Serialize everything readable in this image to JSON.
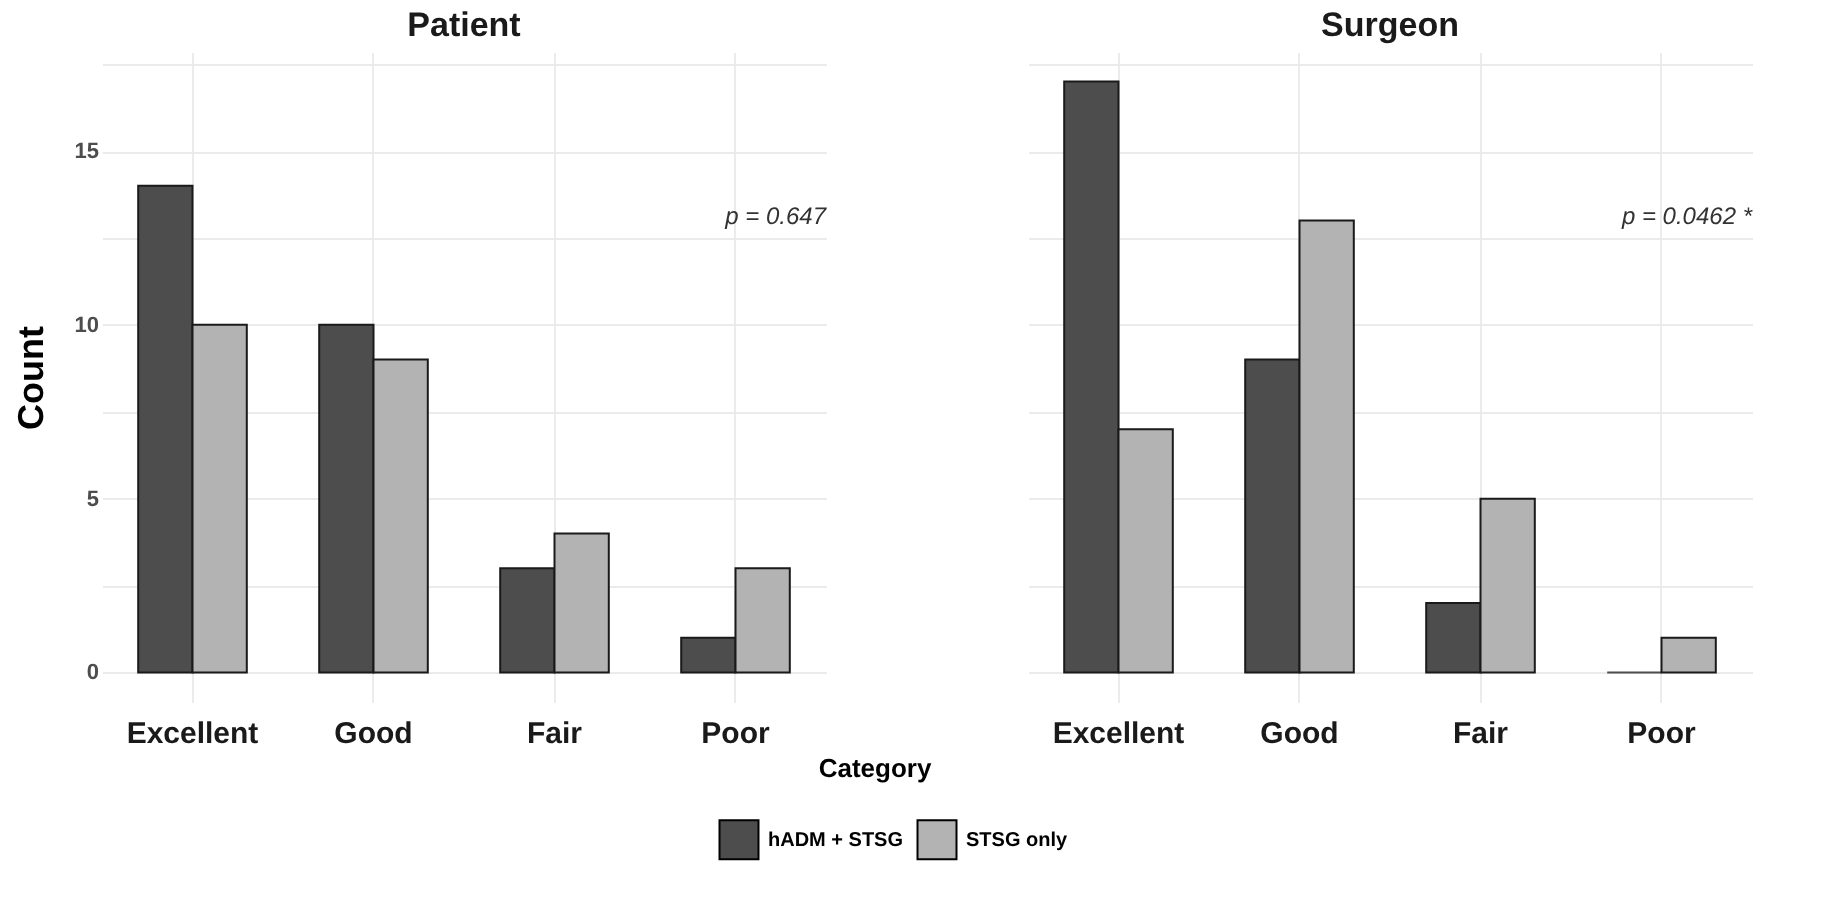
{
  "chart_data": [
    {
      "type": "bar",
      "title": "Patient",
      "xlabel": "Category",
      "ylabel": "Count",
      "categories": [
        "Excellent",
        "Good",
        "Fair",
        "Poor"
      ],
      "series": [
        {
          "name": "hADM + STSG",
          "color": "#4d4d4d",
          "values": [
            14,
            10,
            3,
            1
          ]
        },
        {
          "name": "STSG only",
          "color": "#b3b3b3",
          "values": [
            10,
            9,
            4,
            3
          ]
        }
      ],
      "ylim": [
        -0.85,
        17.85
      ],
      "yticks": [
        0,
        {
          "value": 2.5,
          "label": null
        },
        5,
        {
          "value": 7.5,
          "label": null
        },
        10,
        {
          "value": 12.5,
          "label": null
        },
        15,
        {
          "value": 17.5,
          "label": null
        }
      ],
      "grid": true,
      "legend": "bottom",
      "annotations": [
        "p = 0.647"
      ]
    },
    {
      "type": "bar",
      "title": "Surgeon",
      "categories": [
        "Excellent",
        "Good",
        "Fair",
        "Poor"
      ],
      "series": [
        {
          "name": "hADM + STSG",
          "color": "#4d4d4d",
          "values": [
            17,
            9,
            2,
            0
          ]
        },
        {
          "name": "STSG only",
          "color": "#b3b3b3",
          "values": [
            7,
            13,
            5,
            1
          ]
        }
      ],
      "ylim": [
        -0.85,
        17.85
      ],
      "yticks": [
        0,
        {
          "value": 2.5,
          "label": null
        },
        5,
        {
          "value": 7.5,
          "label": null
        },
        10,
        {
          "value": 12.5,
          "label": null
        },
        15,
        {
          "value": 17.5,
          "label": null
        }
      ],
      "grid": true,
      "legend": "bottom",
      "tick_labels": "x",
      "annotations": [
        "p = 0.0462 *"
      ]
    }
  ]
}
